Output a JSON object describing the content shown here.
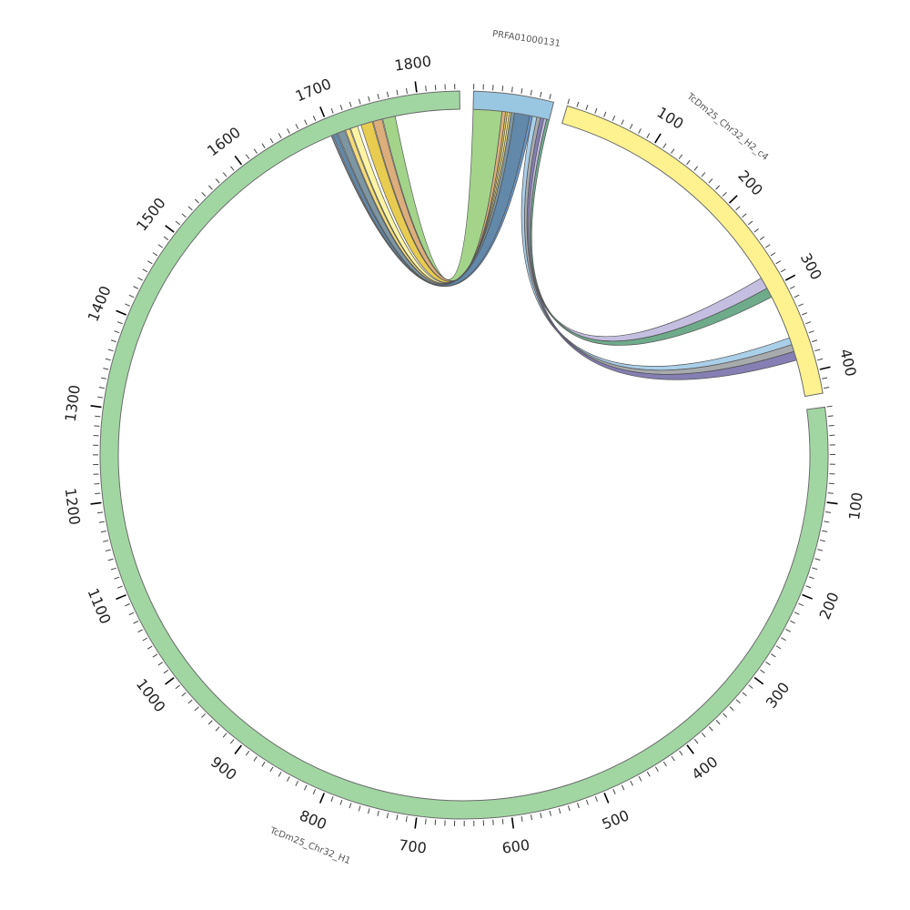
{
  "segments": [
    {
      "id": "PRFA01000131",
      "name": "PRFA01000131",
      "length": 85,
      "color": "#99c7e2",
      "label_ticks": false
    },
    {
      "id": "H2",
      "name": "TcDm25_Chr32_H2_c4",
      "length": 425,
      "color": "#fdf28f",
      "label_ticks": true
    },
    {
      "id": "H1",
      "name": "TcDm25_Chr32_H1",
      "length": 1845,
      "color": "#a1d6a3",
      "label_ticks": true
    }
  ],
  "links": [
    {
      "a": [
        "H1",
        1759,
        1773
      ],
      "b": [
        "PRFA01000131",
        0,
        32
      ],
      "color": "#8fca70"
    },
    {
      "a": [
        "H1",
        1748,
        1758
      ],
      "b": [
        "PRFA01000131",
        32,
        36
      ],
      "color": "#d49c5e"
    },
    {
      "a": [
        "H1",
        1734,
        1747
      ],
      "b": [
        "PRFA01000131",
        36,
        38
      ],
      "color": "#e2c12a"
    },
    {
      "a": [
        "H1",
        1722,
        1730
      ],
      "b": [
        "PRFA01000131",
        38,
        40
      ],
      "color": "#fdf28f"
    },
    {
      "a": [
        "H1",
        1716,
        1721
      ],
      "b": [
        "PRFA01000131",
        40,
        42
      ],
      "color": "#f3d45c"
    },
    {
      "a": [
        "H1",
        1707,
        1715
      ],
      "b": [
        "PRFA01000131",
        42,
        46
      ],
      "color": "#607f8f"
    },
    {
      "a": [
        "H1",
        1701,
        1706
      ],
      "b": [
        "PRFA01000131",
        46,
        63
      ],
      "color": "#3f6e97"
    },
    {
      "a": [
        "H1",
        1699,
        1700
      ],
      "b": [
        "PRFA01000131",
        63,
        66
      ],
      "color": "#4a83c2"
    },
    {
      "a": [
        "PRFA01000131",
        66,
        71
      ],
      "b": [
        "H2",
        358,
        366
      ],
      "color": "#97c5e4"
    },
    {
      "a": [
        "PRFA01000131",
        71,
        75
      ],
      "b": [
        "H2",
        366,
        374
      ],
      "color": "#94989c"
    },
    {
      "a": [
        "PRFA01000131",
        75,
        79
      ],
      "b": [
        "H2",
        374,
        384
      ],
      "color": "#6a63a3"
    },
    {
      "a": [
        "PRFA01000131",
        79,
        82
      ],
      "b": [
        "H2",
        285,
        298
      ],
      "color": "#b7b0da"
    },
    {
      "a": [
        "PRFA01000131",
        82,
        85
      ],
      "b": [
        "H2",
        298,
        309
      ],
      "color": "#4e9872"
    }
  ]
}
